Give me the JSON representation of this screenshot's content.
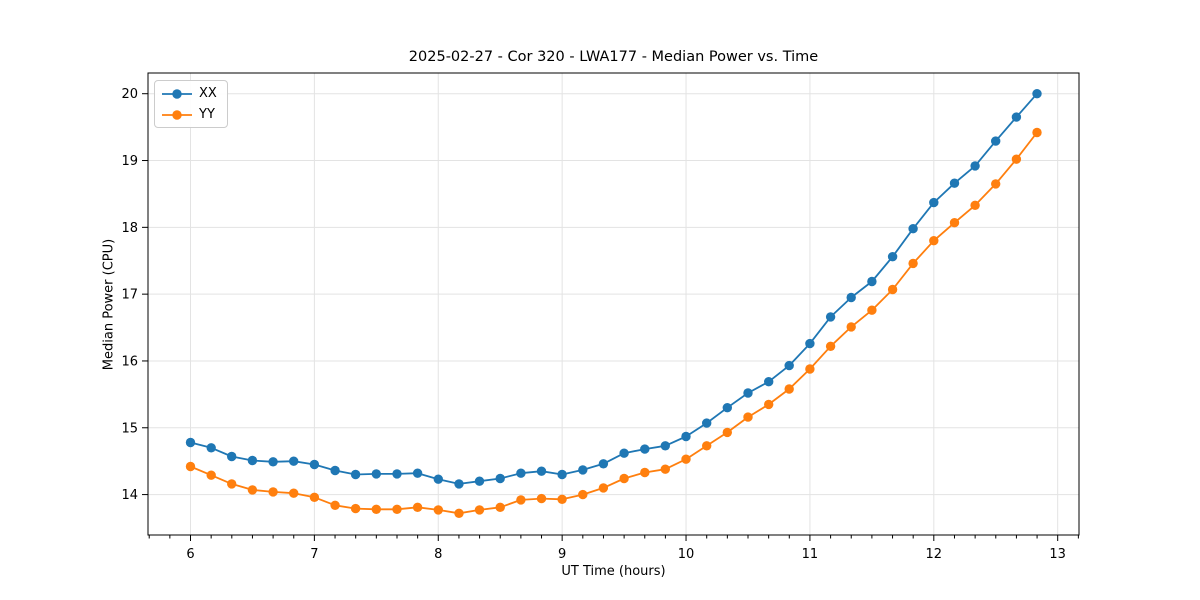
{
  "title": "2025-02-27 - Cor 320 - LWA177 - Median Power vs. Time",
  "chart_data": {
    "type": "line",
    "title": "2025-02-27 - Cor 320 - LWA177 - Median Power vs. Time",
    "xlabel": "UT Time (hours)",
    "ylabel": "Median Power (CPU)",
    "xlim": [
      5.657,
      13.172
    ],
    "ylim": [
      13.395,
      20.31
    ],
    "xticks": [
      6,
      7,
      8,
      9,
      10,
      11,
      12,
      13
    ],
    "yticks": [
      14,
      15,
      16,
      17,
      18,
      19,
      20
    ],
    "x_minor_step": 0.16667,
    "grid": true,
    "grid_color": "#e3e3e3",
    "legend_position": "upper-left",
    "x": [
      6.0,
      6.167,
      6.333,
      6.5,
      6.667,
      6.833,
      7.0,
      7.167,
      7.333,
      7.5,
      7.667,
      7.833,
      8.0,
      8.167,
      8.333,
      8.5,
      8.667,
      8.833,
      9.0,
      9.167,
      9.333,
      9.5,
      9.667,
      9.833,
      10.0,
      10.167,
      10.333,
      10.5,
      10.667,
      10.833,
      11.0,
      11.167,
      11.333,
      11.5,
      11.667,
      11.833,
      12.0,
      12.167,
      12.333,
      12.5,
      12.667,
      12.833
    ],
    "series": [
      {
        "name": "XX",
        "color": "#1f77b4",
        "values": [
          14.78,
          14.7,
          14.57,
          14.51,
          14.49,
          14.5,
          14.45,
          14.36,
          14.3,
          14.31,
          14.31,
          14.32,
          14.23,
          14.16,
          14.2,
          14.24,
          14.32,
          14.35,
          14.3,
          14.37,
          14.46,
          14.62,
          14.68,
          14.73,
          14.87,
          15.07,
          15.3,
          15.52,
          15.69,
          15.93,
          16.26,
          16.66,
          16.95,
          17.19,
          17.56,
          17.98,
          18.37,
          18.66,
          18.92,
          19.29,
          19.65,
          20.0
        ]
      },
      {
        "name": "YY",
        "color": "#ff7f0e",
        "values": [
          14.42,
          14.29,
          14.16,
          14.07,
          14.04,
          14.02,
          13.96,
          13.84,
          13.79,
          13.78,
          13.78,
          13.81,
          13.77,
          13.72,
          13.77,
          13.81,
          13.92,
          13.94,
          13.93,
          14.0,
          14.1,
          14.24,
          14.33,
          14.38,
          14.53,
          14.73,
          14.93,
          15.16,
          15.35,
          15.58,
          15.88,
          16.22,
          16.51,
          16.76,
          17.07,
          17.46,
          17.8,
          18.07,
          18.33,
          18.65,
          19.02,
          19.42
        ]
      }
    ]
  }
}
